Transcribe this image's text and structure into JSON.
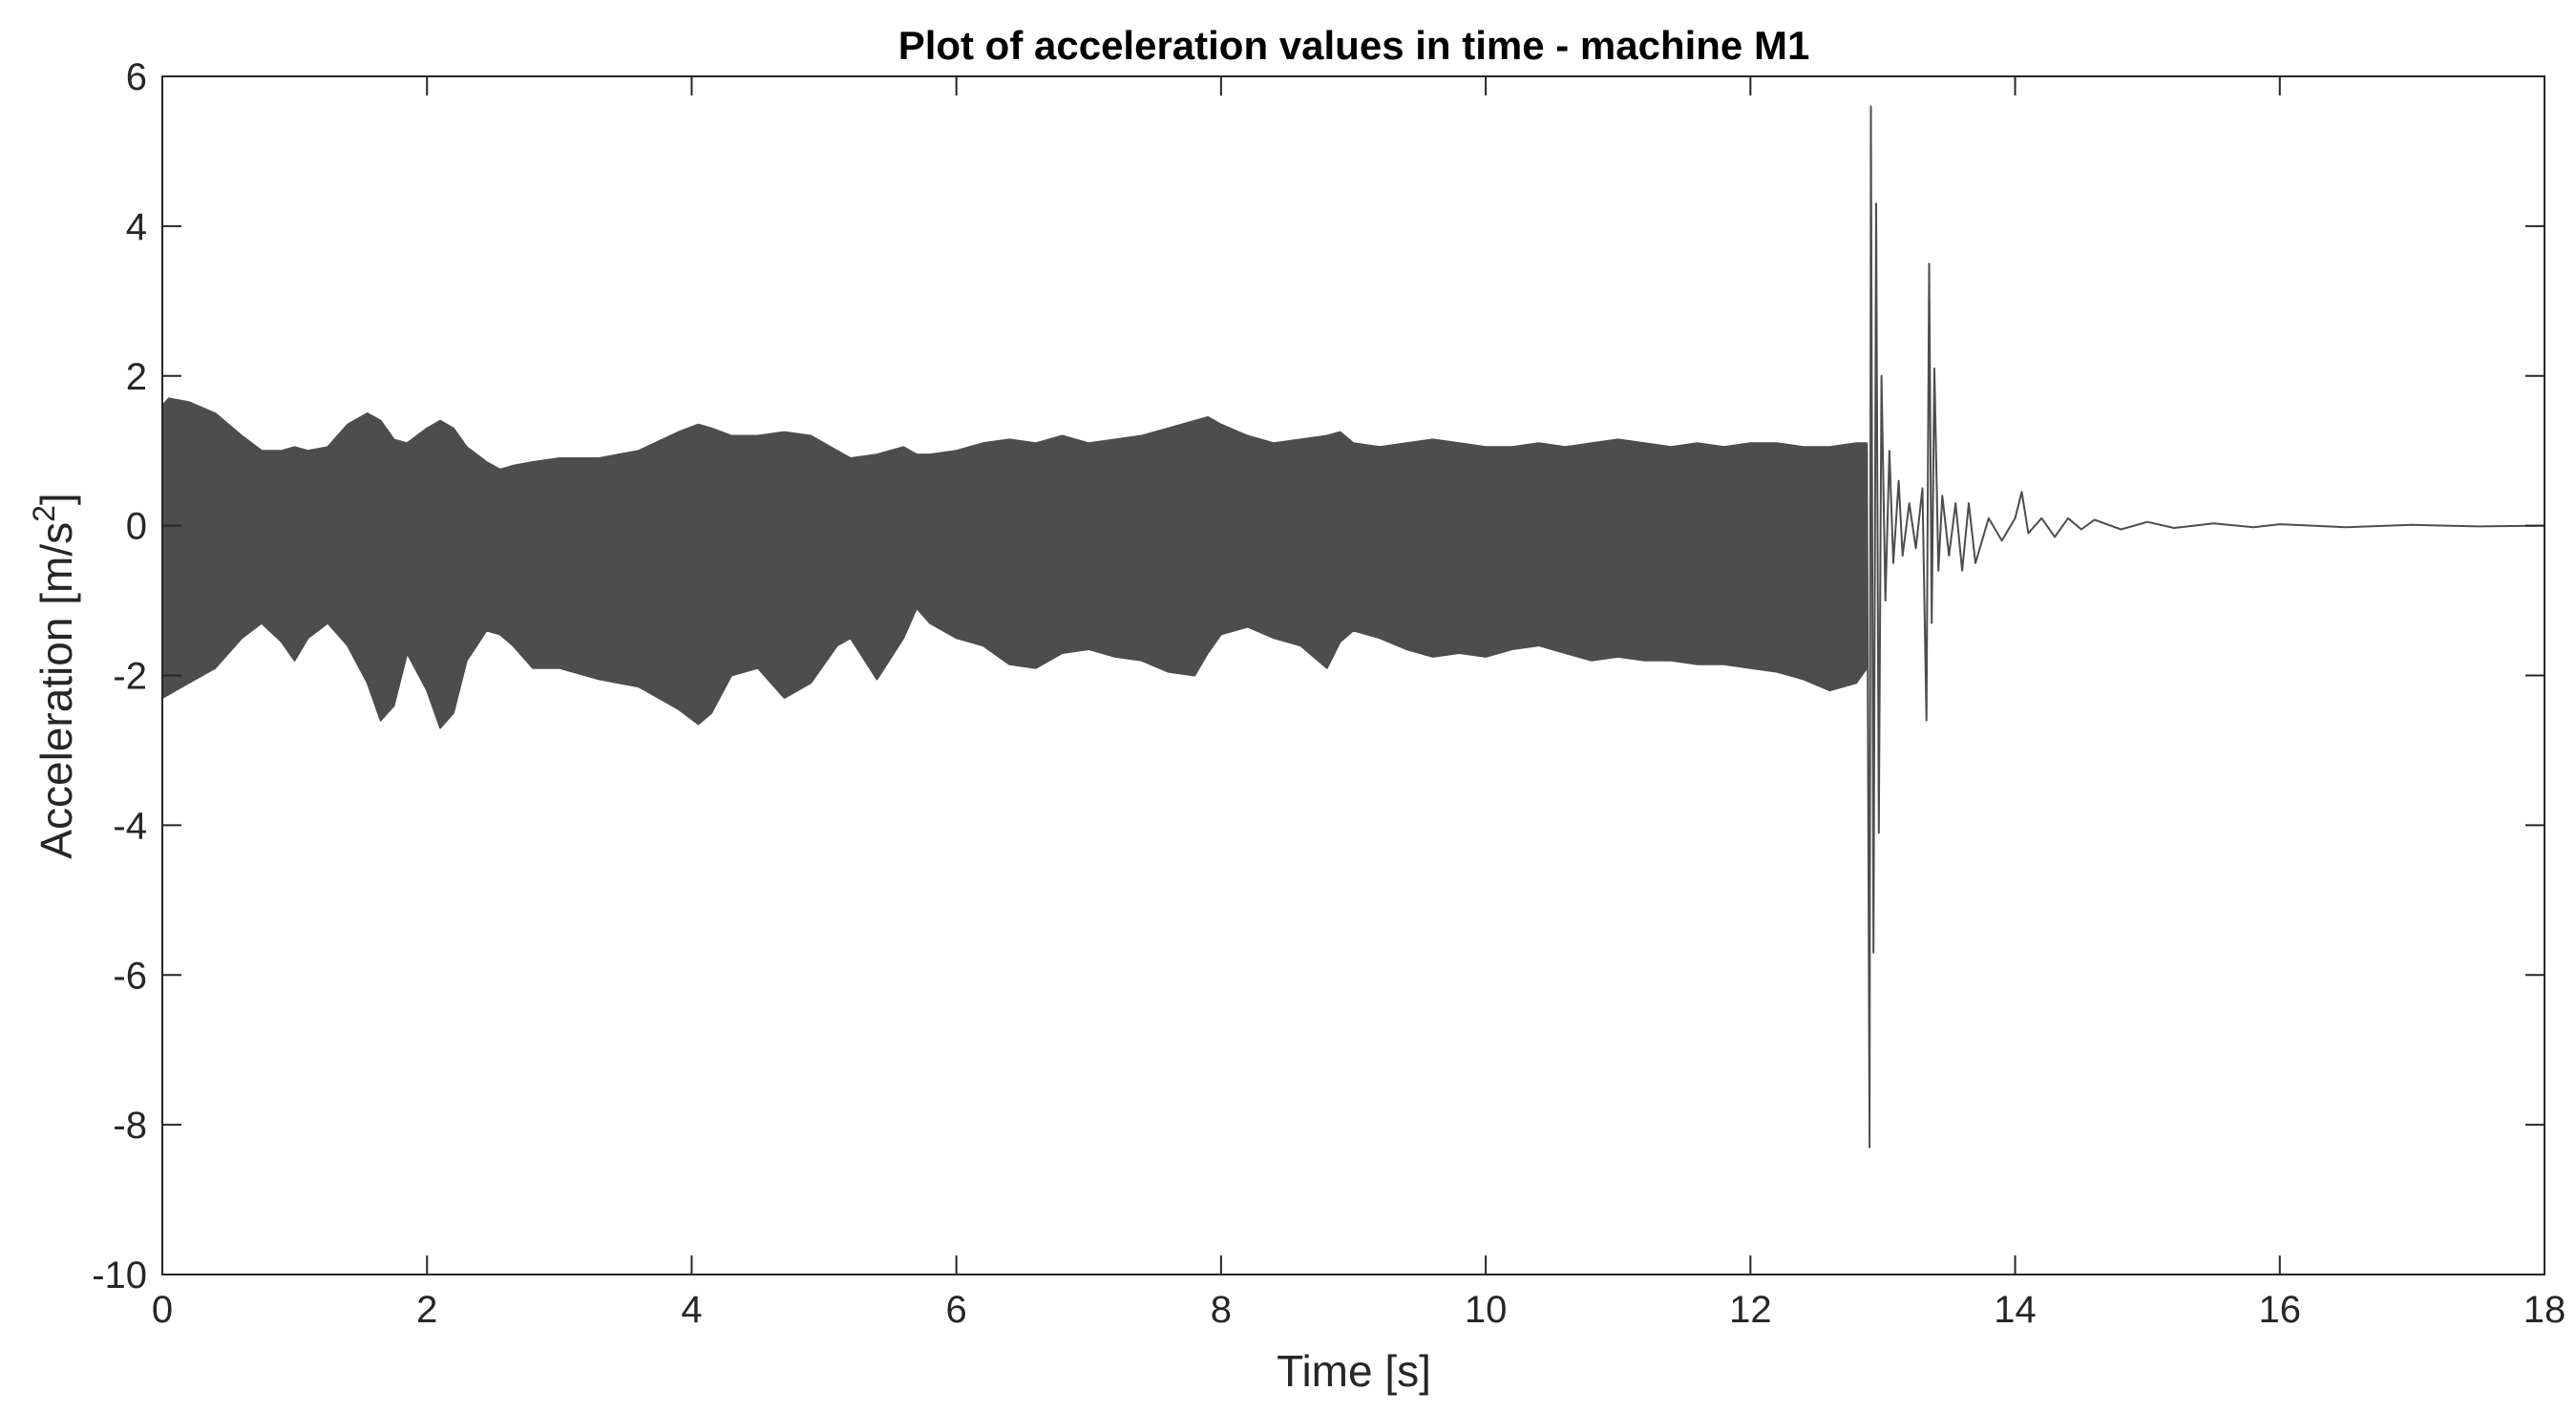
{
  "chart_data": {
    "type": "line",
    "title": "Plot of acceleration values in time - machine M1",
    "xlabel": "Time [s]",
    "ylabel_main": "Acceleration [m/s",
    "ylabel_sup": "2",
    "ylabel_end": "]",
    "xlim": [
      0,
      18
    ],
    "ylim": [
      -10,
      6
    ],
    "xticks": [
      0,
      2,
      4,
      6,
      8,
      10,
      12,
      14,
      16,
      18
    ],
    "xtick_labels": [
      "0",
      "2",
      "4",
      "6",
      "8",
      "10",
      "12",
      "14",
      "16",
      "18"
    ],
    "yticks": [
      -10,
      -8,
      -6,
      -4,
      -2,
      0,
      2,
      4,
      6
    ],
    "ytick_labels": [
      "-10",
      "-8",
      "-6",
      "-4",
      "-2",
      "0",
      "2",
      "4",
      "6"
    ],
    "grid": false,
    "line_color": "#4d4d4d",
    "series": [
      {
        "envelope": {
          "x": [
            0,
            0.05,
            0.2,
            0.4,
            0.6,
            0.75,
            0.9,
            1.0,
            1.1,
            1.25,
            1.4,
            1.55,
            1.65,
            1.75,
            1.85,
            2.0,
            2.1,
            2.2,
            2.3,
            2.45,
            2.55,
            2.65,
            2.8,
            3.0,
            3.3,
            3.6,
            3.9,
            4.05,
            4.15,
            4.3,
            4.5,
            4.7,
            4.9,
            5.1,
            5.2,
            5.4,
            5.6,
            5.7,
            5.8,
            6.0,
            6.2,
            6.4,
            6.6,
            6.8,
            7.0,
            7.2,
            7.4,
            7.6,
            7.8,
            7.9,
            8.0,
            8.2,
            8.4,
            8.6,
            8.8,
            8.9,
            9.0,
            9.2,
            9.4,
            9.6,
            9.8,
            10.0,
            10.2,
            10.4,
            10.6,
            10.8,
            11.0,
            11.2,
            11.4,
            11.6,
            11.8,
            12.0,
            12.2,
            12.4,
            12.6,
            12.8,
            12.88
          ],
          "upper": [
            1.6,
            1.7,
            1.65,
            1.5,
            1.2,
            1.0,
            1.0,
            1.05,
            1.0,
            1.05,
            1.35,
            1.5,
            1.4,
            1.15,
            1.1,
            1.3,
            1.4,
            1.3,
            1.05,
            0.85,
            0.75,
            0.8,
            0.85,
            0.9,
            0.9,
            1.0,
            1.25,
            1.35,
            1.3,
            1.2,
            1.2,
            1.25,
            1.2,
            1.0,
            0.9,
            0.95,
            1.05,
            0.95,
            0.95,
            1.0,
            1.1,
            1.15,
            1.1,
            1.2,
            1.1,
            1.15,
            1.2,
            1.3,
            1.4,
            1.45,
            1.35,
            1.2,
            1.1,
            1.15,
            1.2,
            1.25,
            1.1,
            1.05,
            1.1,
            1.15,
            1.1,
            1.05,
            1.05,
            1.1,
            1.05,
            1.1,
            1.15,
            1.1,
            1.05,
            1.1,
            1.05,
            1.1,
            1.1,
            1.05,
            1.05,
            1.1,
            1.1
          ],
          "lower": [
            -2.3,
            -2.25,
            -2.1,
            -1.9,
            -1.5,
            -1.3,
            -1.55,
            -1.8,
            -1.5,
            -1.3,
            -1.6,
            -2.1,
            -2.6,
            -2.4,
            -1.7,
            -2.2,
            -2.7,
            -2.5,
            -1.8,
            -1.4,
            -1.45,
            -1.6,
            -1.9,
            -1.9,
            -2.05,
            -2.15,
            -2.45,
            -2.65,
            -2.5,
            -2.0,
            -1.9,
            -2.3,
            -2.1,
            -1.6,
            -1.5,
            -2.05,
            -1.5,
            -1.1,
            -1.3,
            -1.5,
            -1.6,
            -1.85,
            -1.9,
            -1.7,
            -1.65,
            -1.75,
            -1.8,
            -1.95,
            -2.0,
            -1.7,
            -1.45,
            -1.35,
            -1.5,
            -1.6,
            -1.9,
            -1.55,
            -1.4,
            -1.5,
            -1.65,
            -1.75,
            -1.7,
            -1.75,
            -1.65,
            -1.6,
            -1.7,
            -1.8,
            -1.75,
            -1.8,
            -1.8,
            -1.85,
            -1.85,
            -1.9,
            -1.95,
            -2.05,
            -2.2,
            -2.1,
            -1.9
          ]
        },
        "transient": {
          "x": [
            12.88,
            12.9,
            12.91,
            12.93,
            12.95,
            12.97,
            12.99,
            13.02,
            13.05,
            13.08,
            13.12,
            13.15,
            13.2,
            13.25,
            13.3,
            13.33,
            13.35,
            13.37,
            13.39,
            13.42,
            13.45,
            13.5,
            13.55,
            13.6,
            13.65,
            13.7,
            13.8,
            13.9,
            14.0,
            14.05,
            14.1,
            14.2,
            14.3,
            14.4,
            14.5,
            14.6,
            14.8,
            15.0,
            15.2,
            15.5,
            15.8,
            16.0,
            16.5,
            17.0,
            17.5,
            18.0
          ],
          "y": [
            1.0,
            -8.3,
            5.6,
            -5.7,
            4.3,
            -4.1,
            2.0,
            -1.0,
            1.0,
            -0.5,
            0.6,
            -0.4,
            0.3,
            -0.3,
            0.5,
            -2.6,
            3.5,
            -1.3,
            2.1,
            -0.6,
            0.4,
            -0.4,
            0.3,
            -0.6,
            0.3,
            -0.5,
            0.1,
            -0.2,
            0.1,
            0.45,
            -0.1,
            0.1,
            -0.15,
            0.1,
            -0.05,
            0.08,
            -0.05,
            0.05,
            -0.03,
            0.03,
            -0.02,
            0.02,
            -0.02,
            0.01,
            -0.01,
            0.0
          ]
        }
      }
    ]
  }
}
